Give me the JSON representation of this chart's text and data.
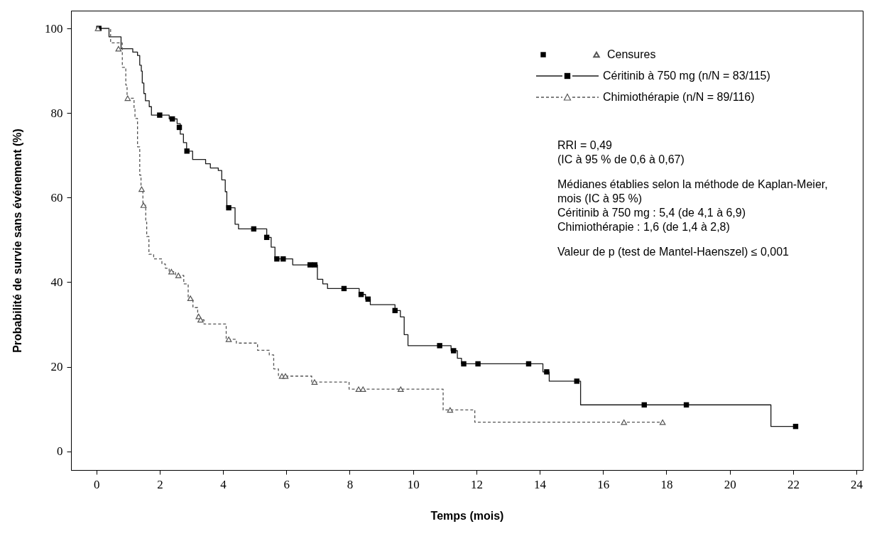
{
  "chart_data": {
    "type": "step",
    "xlabel": "Temps (mois)",
    "ylabel": "Probabilité de survie sans événement (%)",
    "xlim": [
      -0.8,
      24.2
    ],
    "ylim": [
      -4.4,
      104.2
    ],
    "xticks": [
      0,
      2,
      4,
      6,
      8,
      10,
      12,
      14,
      16,
      18,
      20,
      22,
      24
    ],
    "yticks": [
      0,
      20,
      40,
      60,
      80,
      100
    ],
    "grid": false,
    "legend": "top right",
    "annotations": [
      "RRI = 0,49\n(IC à 95 % de 0,6 à 0,67)",
      "Médianes établies selon la méthode de Kaplan-Meier, mois (IC à 95 %)\nCéritinib à 750 mg : 5,4 (de 4,1 à 6,9)\nChimiothérapie : 1,6 (de 1,4 à 2,8)",
      "Valeur de p (test de Mantel-Haenszel) ≤ 0,001"
    ],
    "series": [
      {
        "name": "Céritinib à 750 mg (n/N = 83/115)",
        "type": "step",
        "color": "#1a1a1a",
        "line_style": "solid",
        "x": [
          0,
          0.4,
          0.78,
          1.15,
          1.3,
          1.37,
          1.42,
          1.45,
          1.5,
          1.55,
          1.67,
          1.74,
          2.3,
          2.55,
          2.65,
          2.75,
          2.85,
          3.04,
          3.45,
          3.6,
          3.85,
          3.96,
          4.07,
          4.12,
          4.38,
          4.49,
          5.38,
          5.52,
          5.64,
          6.2,
          6.98,
          7.15,
          7.3,
          8.3,
          8.5,
          8.65,
          9.43,
          9.6,
          9.72,
          9.84,
          11.2,
          11.4,
          11.53,
          14.1,
          14.3,
          15.29,
          21.3,
          22.08
        ],
        "values": [
          100,
          98,
          95.2,
          94.4,
          93.6,
          91.3,
          89.9,
          87.1,
          84.6,
          82.9,
          81.5,
          79.5,
          78.6,
          77.5,
          75,
          73,
          71,
          69,
          68,
          67,
          66.4,
          64.2,
          61.4,
          57.6,
          53.7,
          52.6,
          50.6,
          48.3,
          45.5,
          44.1,
          40.7,
          39.6,
          38.5,
          37.1,
          36,
          34.7,
          33.3,
          31.8,
          27.6,
          25,
          23.8,
          22,
          20.7,
          18.8,
          16.6,
          11,
          5.9,
          5.9
        ]
      },
      {
        "name": "Chimiothérapie (n/N = 89/116)",
        "type": "step",
        "color": "#555555",
        "line_style": "dashed",
        "x": [
          0,
          0.45,
          0.82,
          0.93,
          0.97,
          1.19,
          1.22,
          1.3,
          1.37,
          1.41,
          1.47,
          1.56,
          1.59,
          1.66,
          1.81,
          2.07,
          2.18,
          2.3,
          2.5,
          2.76,
          2.9,
          3.05,
          3.2,
          3.27,
          3.4,
          4.1,
          4.42,
          5.09,
          5.46,
          5.6,
          5.75,
          6.8,
          7.98,
          10.95,
          11.95,
          17.88
        ],
        "values": [
          100,
          96.6,
          90.8,
          86.6,
          83.5,
          81.3,
          78.7,
          72,
          65.3,
          62,
          58.2,
          54.2,
          50.8,
          46.6,
          45.5,
          44.3,
          43.3,
          42.5,
          41.6,
          39.6,
          36.2,
          34,
          31.9,
          31.1,
          30.1,
          26.5,
          25.6,
          23.9,
          22.8,
          19.5,
          17.8,
          16.4,
          14.7,
          9.8,
          6.9,
          6.9
        ]
      },
      {
        "type": "scatter",
        "marker": "square",
        "color": "#000000",
        "x": [
          0.08,
          2.0,
          2.4,
          2.62,
          2.86,
          4.18,
          4.97,
          5.38,
          5.7,
          5.9,
          6.75,
          6.9,
          7.82,
          8.36,
          8.58,
          9.43,
          10.84,
          11.28,
          11.6,
          12.05,
          13.65,
          14.22,
          15.17,
          17.3,
          18.63,
          22.08
        ],
        "values": [
          100,
          79.5,
          78.6,
          76.6,
          71,
          57.6,
          52.6,
          50.6,
          45.5,
          45.5,
          44.1,
          44.1,
          38.5,
          37.1,
          36,
          33.3,
          25,
          23.8,
          20.7,
          20.7,
          20.7,
          18.8,
          16.6,
          11,
          11,
          5.9
        ]
      },
      {
        "name": "Censures",
        "type": "scatter",
        "marker": "triangle",
        "color": "#555555",
        "x": [
          0.05,
          0.7,
          0.99,
          1.43,
          1.49,
          2.37,
          2.59,
          2.97,
          3.23,
          3.29,
          4.18,
          5.86,
          5.97,
          6.89,
          8.28,
          8.42,
          9.61,
          11.17,
          16.66,
          17.88
        ],
        "values": [
          100,
          95.2,
          83.5,
          62,
          58.2,
          42.5,
          41.6,
          36.2,
          31.9,
          31.1,
          26.5,
          17.8,
          17.8,
          16.4,
          14.7,
          14.7,
          14.7,
          9.8,
          6.9,
          6.9
        ]
      }
    ]
  }
}
